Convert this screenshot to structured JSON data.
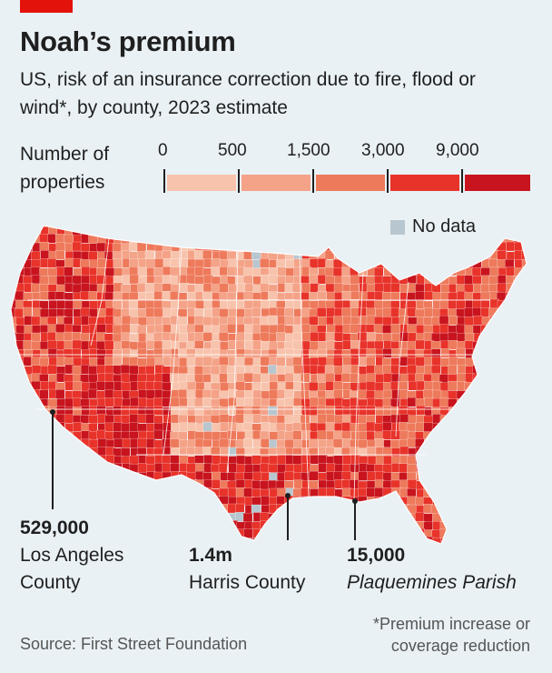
{
  "title": "Noah’s premium",
  "subtitle": "US, risk of an insurance correction due to fire, flood or wind*, by county, 2023 estimate",
  "legend": {
    "label": "Number of properties",
    "ticks": [
      "0",
      "500",
      "1,500",
      "3,000",
      "9,000"
    ],
    "colors": [
      "#f8c3ac",
      "#f4a388",
      "#ee7a5c",
      "#e8332a",
      "#c8141e"
    ],
    "no_data_label": "No data",
    "no_data_color": "#b8c7cf"
  },
  "annotations": [
    {
      "value": "529,000",
      "name_line1": "Los Angeles",
      "name_line2": "County"
    },
    {
      "value": "1.4m",
      "name_line1": "Harris County",
      "name_line2": ""
    },
    {
      "value": "15,000",
      "name_line1": "Plaquemines Parish",
      "name_line2": ""
    }
  ],
  "source": "Source: First Street Foundation",
  "footnote": "*Premium increase or coverage reduction"
}
